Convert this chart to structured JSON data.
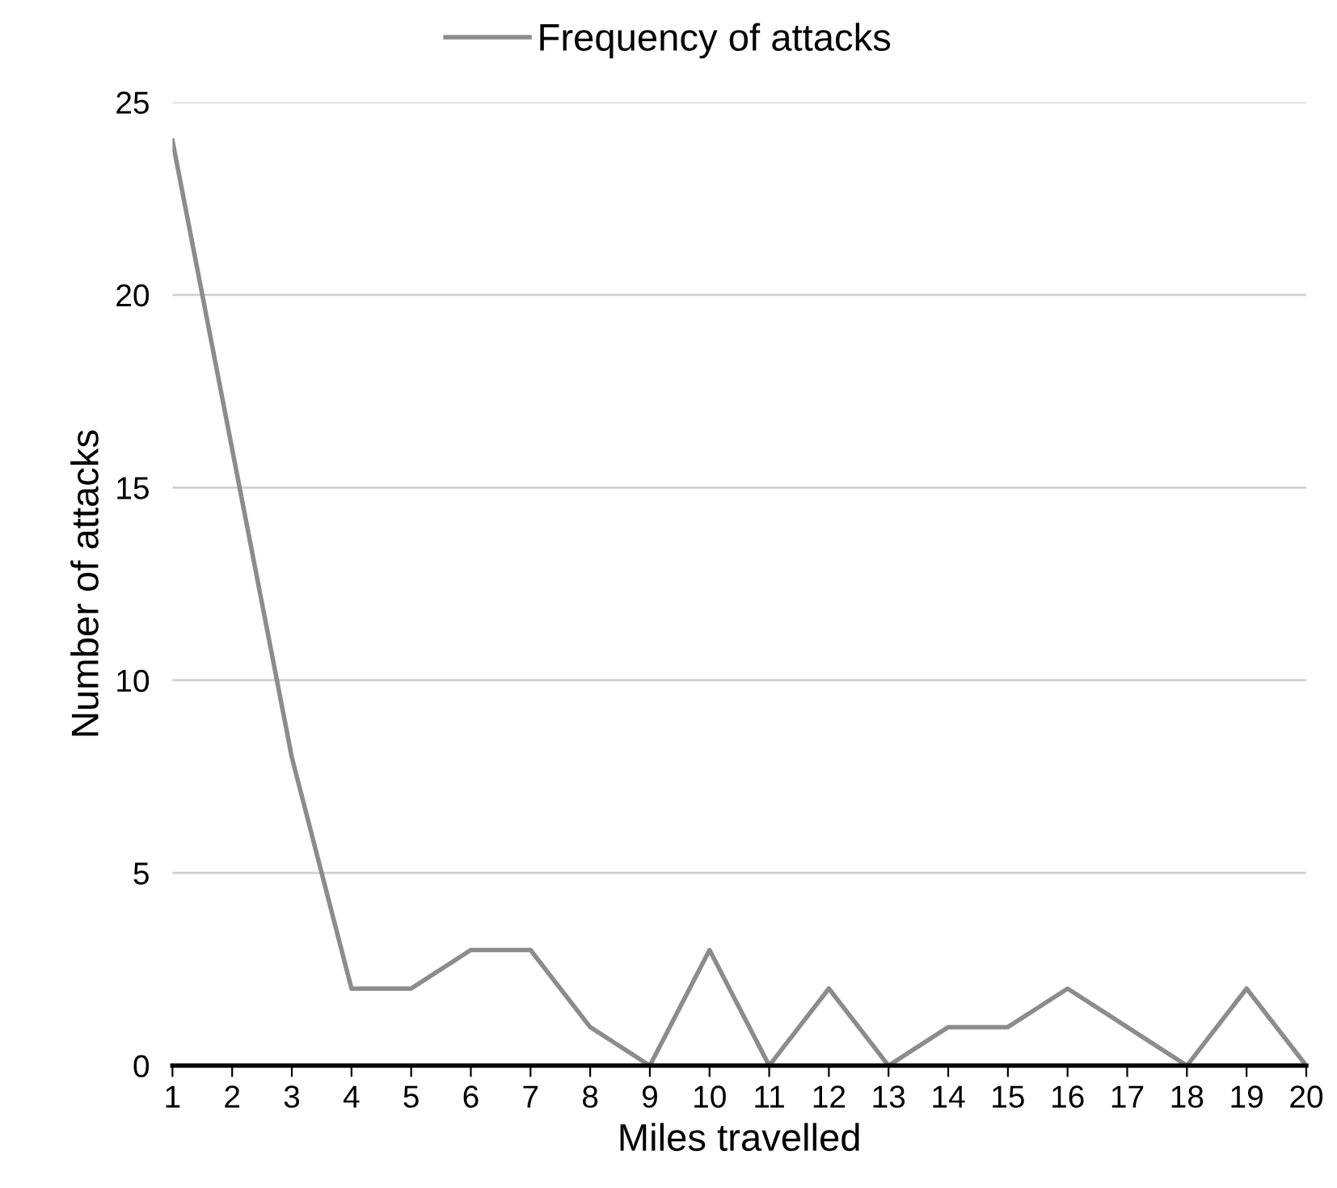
{
  "chart_data": {
    "type": "line",
    "xlabel": "Miles travelled",
    "ylabel": "Number of attacks",
    "categories": [
      "1",
      "2",
      "3",
      "4",
      "5",
      "6",
      "7",
      "8",
      "9",
      "10",
      "11",
      "12",
      "13",
      "14",
      "15",
      "16",
      "17",
      "18",
      "19",
      "20"
    ],
    "series": [
      {
        "name": "Frequency of attacks",
        "color": "#8c8c8c",
        "values": [
          24,
          16,
          8,
          2,
          2,
          3,
          3,
          1,
          0,
          3,
          0,
          2,
          0,
          1,
          1,
          2,
          1,
          0,
          2,
          0
        ]
      }
    ],
    "ylim": [
      0,
      25
    ],
    "yticks": [
      0,
      5,
      10,
      15,
      20,
      25
    ],
    "grid": "y",
    "legend": "top",
    "marker": "none",
    "line_style": "solid"
  }
}
